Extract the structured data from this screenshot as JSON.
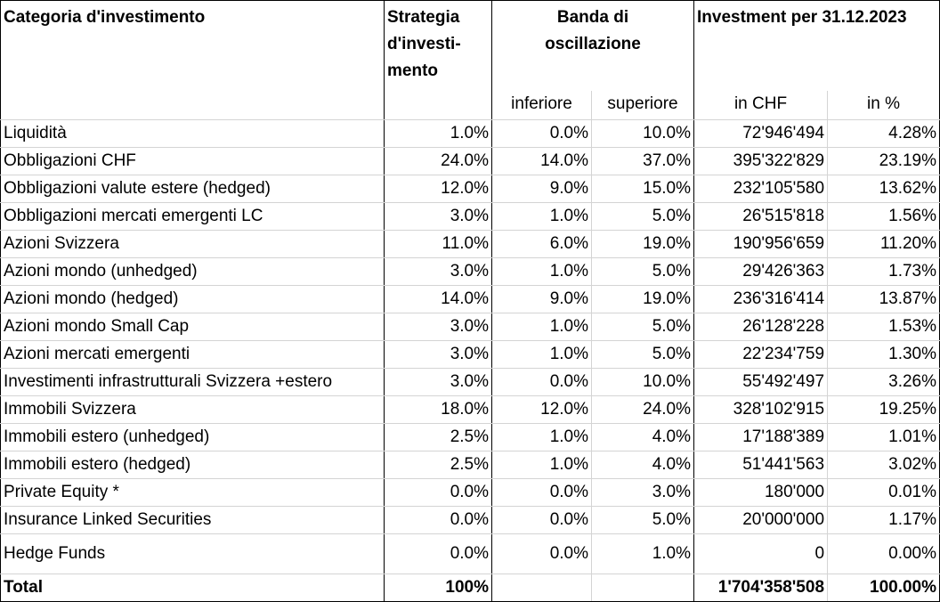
{
  "headers": {
    "category": "Categoria d'investimento",
    "strategy_line1": "Strategia",
    "strategy_line2": "d'investi-",
    "strategy_line3": "mento",
    "band_line1": "Banda di",
    "band_line2": "oscillazione",
    "investment": "Investment per 31.12.2023",
    "lower": "inferiore",
    "upper": "superiore",
    "in_chf": "in CHF",
    "in_pct": "in %"
  },
  "rows": [
    {
      "category": "Liquidità",
      "strategy": "1.0%",
      "lower": "0.0%",
      "upper": "10.0%",
      "chf": "72'946'494",
      "pct": "4.28%"
    },
    {
      "category": "Obbligazioni CHF",
      "strategy": "24.0%",
      "lower": "14.0%",
      "upper": "37.0%",
      "chf": "395'322'829",
      "pct": "23.19%"
    },
    {
      "category": "Obbligazioni valute estere (hedged)",
      "strategy": "12.0%",
      "lower": "9.0%",
      "upper": "15.0%",
      "chf": "232'105'580",
      "pct": "13.62%"
    },
    {
      "category": "Obbligazioni mercati emergenti LC",
      "strategy": "3.0%",
      "lower": "1.0%",
      "upper": "5.0%",
      "chf": "26'515'818",
      "pct": "1.56%"
    },
    {
      "category": "Azioni Svizzera",
      "strategy": "11.0%",
      "lower": "6.0%",
      "upper": "19.0%",
      "chf": "190'956'659",
      "pct": "11.20%"
    },
    {
      "category": "Azioni mondo (unhedged)",
      "strategy": "3.0%",
      "lower": "1.0%",
      "upper": "5.0%",
      "chf": "29'426'363",
      "pct": "1.73%"
    },
    {
      "category": "Azioni mondo (hedged)",
      "strategy": "14.0%",
      "lower": "9.0%",
      "upper": "19.0%",
      "chf": "236'316'414",
      "pct": "13.87%"
    },
    {
      "category": "Azioni mondo Small Cap",
      "strategy": "3.0%",
      "lower": "1.0%",
      "upper": "5.0%",
      "chf": "26'128'228",
      "pct": "1.53%"
    },
    {
      "category": "Azioni mercati emergenti",
      "strategy": "3.0%",
      "lower": "1.0%",
      "upper": "5.0%",
      "chf": "22'234'759",
      "pct": "1.30%"
    },
    {
      "category": "Investimenti infrastrutturali Svizzera +estero",
      "strategy": "3.0%",
      "lower": "0.0%",
      "upper": "10.0%",
      "chf": "55'492'497",
      "pct": "3.26%"
    },
    {
      "category": "Immobili Svizzera",
      "strategy": "18.0%",
      "lower": "12.0%",
      "upper": "24.0%",
      "chf": "328'102'915",
      "pct": "19.25%"
    },
    {
      "category": "Immobili estero (unhedged)",
      "strategy": "2.5%",
      "lower": "1.0%",
      "upper": "4.0%",
      "chf": "17'188'389",
      "pct": "1.01%"
    },
    {
      "category": "Immobili estero (hedged)",
      "strategy": "2.5%",
      "lower": "1.0%",
      "upper": "4.0%",
      "chf": "51'441'563",
      "pct": "3.02%"
    },
    {
      "category": "Private Equity *",
      "strategy": "0.0%",
      "lower": "0.0%",
      "upper": "3.0%",
      "chf": "180'000",
      "pct": "0.01%"
    },
    {
      "category": "Insurance Linked Securities",
      "strategy": "0.0%",
      "lower": "0.0%",
      "upper": "5.0%",
      "chf": "20'000'000",
      "pct": "1.17%"
    },
    {
      "category": "Hedge Funds",
      "strategy": "0.0%",
      "lower": "0.0%",
      "upper": "1.0%",
      "chf": "0",
      "pct": "0.00%"
    }
  ],
  "total": {
    "category": "Total",
    "strategy": "100%",
    "chf": "1'704'358'508",
    "pct": "100.00%"
  }
}
